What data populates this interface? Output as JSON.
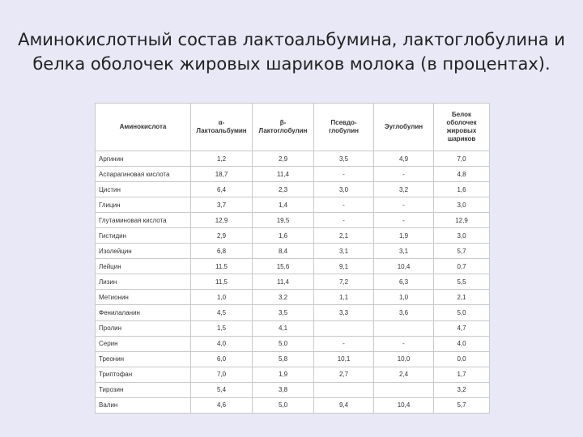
{
  "title": {
    "line1": "Аминокислотный состав лактоальбумина, лактоглобулина и",
    "line2": "белка оболочек жировых шариков молока (в процентах)."
  },
  "table": {
    "headers": [
      "Аминокислота",
      "α-Лактоальбумин",
      "β-Лактоглобулин",
      "Псевдо-глобулин",
      "Эуглобулин",
      "Белок оболочек жировых шариков"
    ],
    "rows": [
      [
        "Аргинин",
        "1,2",
        "2,9",
        "3,5",
        "4,9",
        "7,0"
      ],
      [
        "Аспарагиновая кислота",
        "18,7",
        "11,4",
        "-",
        "-",
        "4,8"
      ],
      [
        "Цистин",
        "6,4",
        "2,3",
        "3,0",
        "3,2",
        "1,6"
      ],
      [
        "Глицин",
        "3,7",
        "1,4",
        "-",
        "-",
        "3,0"
      ],
      [
        "Глутаминовая кислота",
        "12,9",
        "19,5",
        "-",
        "-",
        "12,9"
      ],
      [
        "Гистидин",
        "2,9",
        "1,6",
        "2,1",
        "1,9",
        "3,0"
      ],
      [
        "Изолейцин",
        "6,8",
        "8,4",
        "3,1",
        "3,1",
        "5,7"
      ],
      [
        "Лейцин",
        "11,5",
        "15,6",
        "9,1",
        "10,4",
        "0,7"
      ],
      [
        "Лизин",
        "11,5",
        "11,4",
        "7,2",
        "6,3",
        "5,5"
      ],
      [
        "Метионин",
        "1,0",
        "3,2",
        "1,1",
        "1,0",
        "2,1"
      ],
      [
        "Фенилаланин",
        "4,5",
        "3,5",
        "3,3",
        "3,6",
        "5,0"
      ],
      [
        "Пролин",
        "1,5",
        "4,1",
        "",
        "",
        "4,7"
      ],
      [
        "Серин",
        "4,0",
        "5,0",
        "-",
        "-",
        "4,0"
      ],
      [
        "Треонин",
        "6,0",
        "5,8",
        "10,1",
        "10,0",
        "0,0"
      ],
      [
        "Триптофан",
        "7,0",
        "1,9",
        "2,7",
        "2,4",
        "1,7"
      ],
      [
        "Тирозин",
        "5,4",
        "3,8",
        "",
        "",
        "3,2"
      ],
      [
        "Валин",
        "4,6",
        "5,0",
        "9,4",
        "10,4",
        "5,7"
      ]
    ]
  }
}
